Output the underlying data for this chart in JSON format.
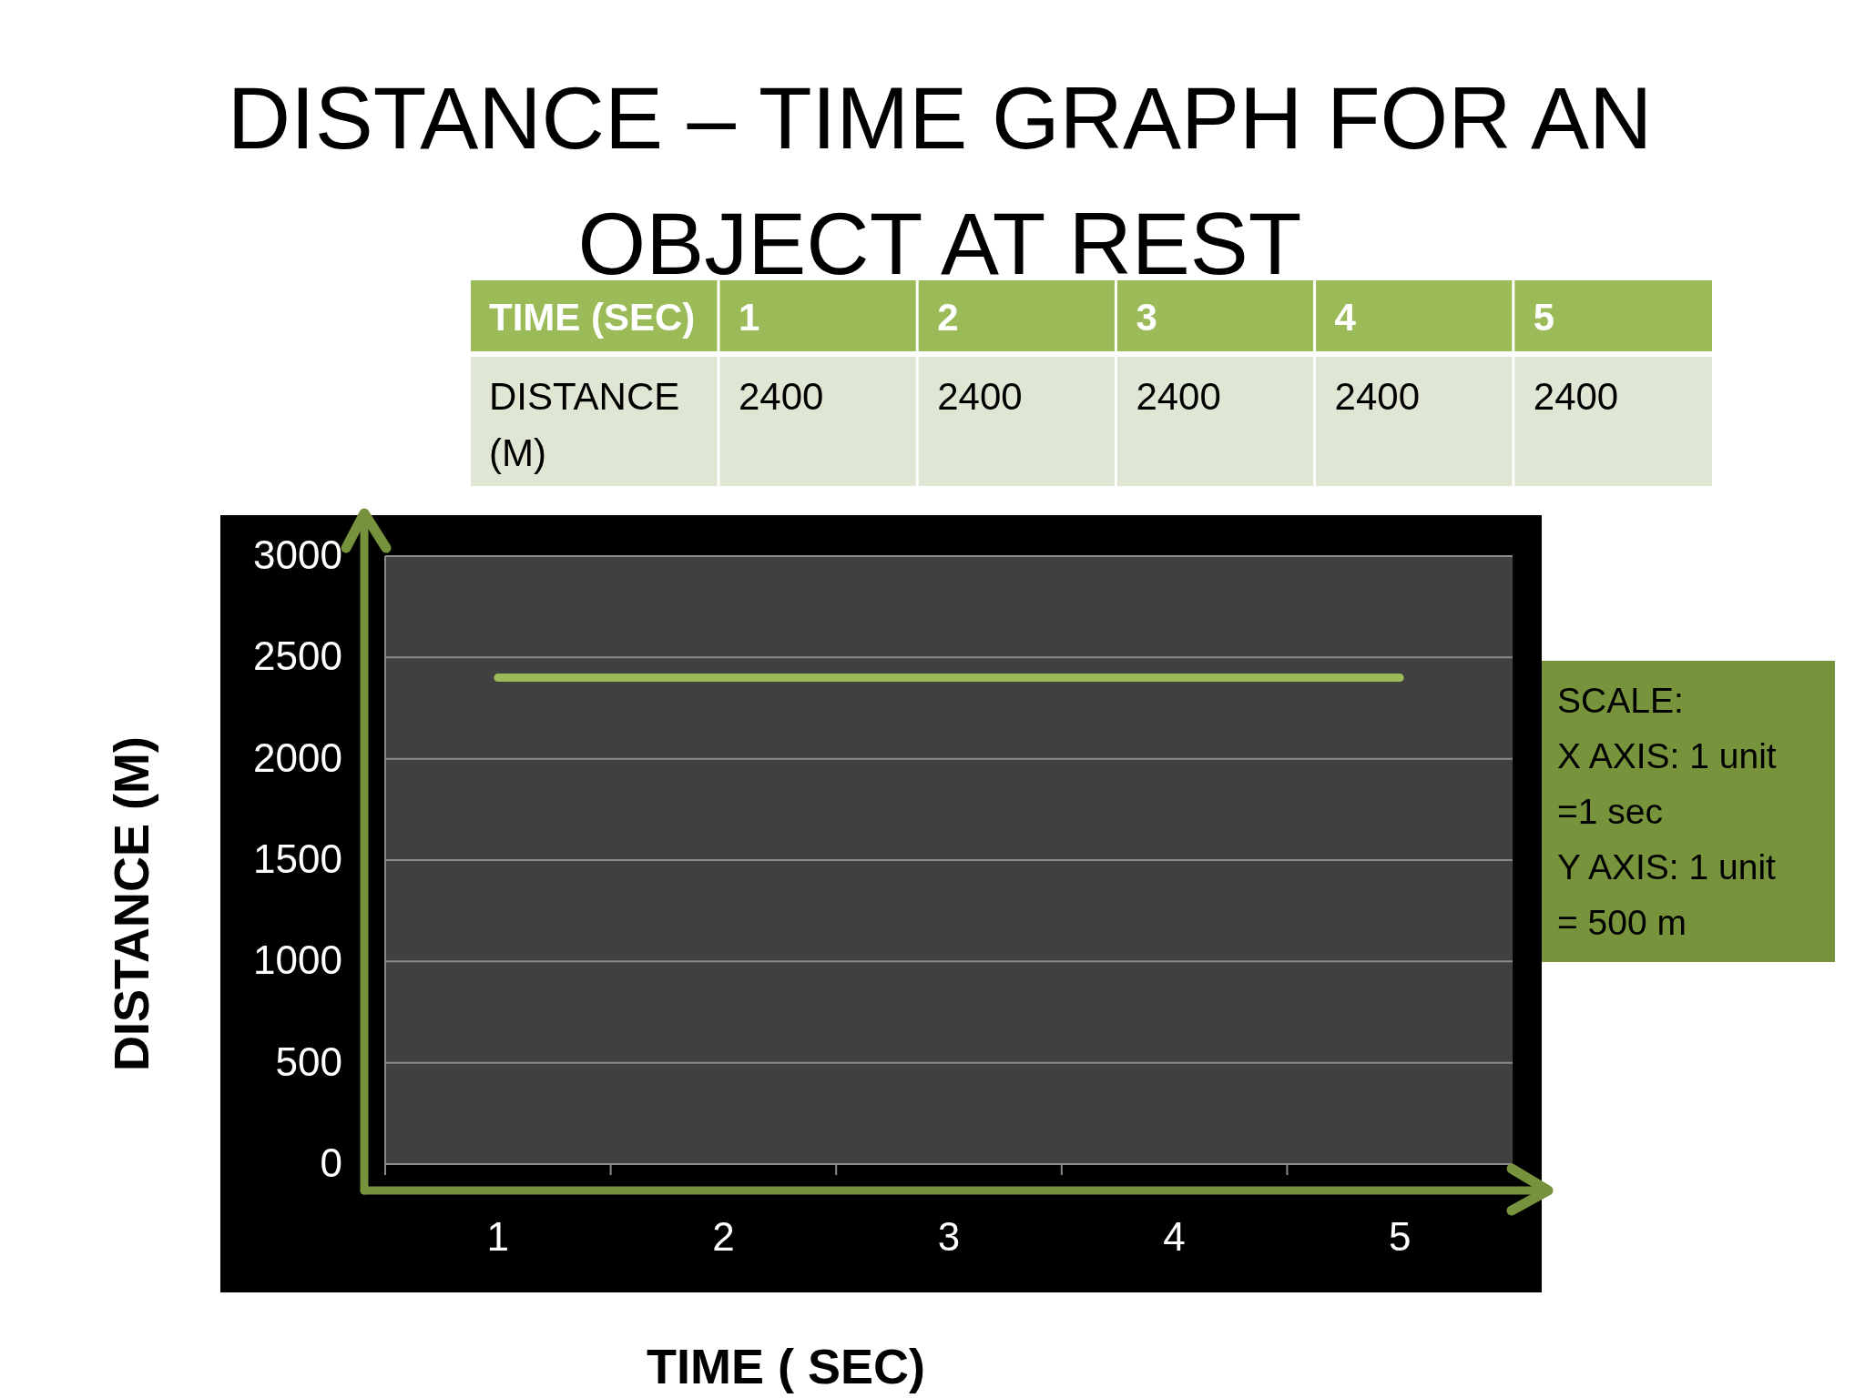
{
  "chart_data": {
    "type": "line",
    "title": "DISTANCE – TIME GRAPH FOR AN OBJECT AT REST",
    "xlabel": "TIME ( SEC)",
    "ylabel": "DISTANCE (M)",
    "categories": [
      "1",
      "2",
      "3",
      "4",
      "5"
    ],
    "series": [
      {
        "color": "#9bbb59",
        "values": [
          2400,
          2400,
          2400,
          2400,
          2400
        ]
      }
    ],
    "ylim": [
      0,
      3000
    ],
    "yticks": [
      0,
      500,
      1000,
      1500,
      2000,
      2500,
      3000
    ],
    "grid": "y",
    "marker": "none",
    "line_style": "solid",
    "annotations": [
      "TIME (SEC)",
      "DISTANCE (M)",
      "SCALE:",
      "X AXIS: 1 unit =1 sec",
      "Y AXIS: 1 unit = 500 m",
      "2400",
      "2400",
      "2400",
      "2400",
      "2400"
    ]
  }
}
